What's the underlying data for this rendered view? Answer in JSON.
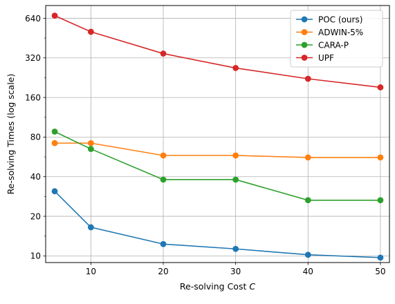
{
  "chart_data": {
    "type": "line",
    "xlabel": "Re-solving Cost",
    "xlabel_var": "C",
    "ylabel": "Re-solving Times (log scale)",
    "y_scale": "log2",
    "xlim": [
      3.75,
      51.25
    ],
    "ylim": [
      8.9,
      800
    ],
    "x_ticks": [
      10,
      20,
      30,
      40,
      50
    ],
    "x_tick_labels": [
      "10",
      "20",
      "30",
      "40",
      "50"
    ],
    "y_ticks": [
      10,
      20,
      40,
      80,
      160,
      320,
      640
    ],
    "y_tick_labels": [
      "10",
      "20",
      "40",
      "80",
      "160",
      "320",
      "640"
    ],
    "grid": true,
    "legend_position": "top-right",
    "x": [
      5,
      10,
      20,
      30,
      40,
      50
    ],
    "series": [
      {
        "name": "POC (ours)",
        "color": "#1f77b4",
        "values": [
          31,
          16.5,
          12.3,
          11.3,
          10.2,
          9.7
        ]
      },
      {
        "name": "ADWIN-5%",
        "color": "#ff7f0e",
        "values": [
          72,
          72,
          58,
          58,
          56,
          56
        ]
      },
      {
        "name": "CARA-P",
        "color": "#2ca02c",
        "values": [
          88,
          65,
          38,
          38,
          26.5,
          26.5
        ]
      },
      {
        "name": "UPF",
        "color": "#d62728",
        "values": [
          670,
          505,
          345,
          268,
          222,
          191
        ]
      }
    ]
  }
}
